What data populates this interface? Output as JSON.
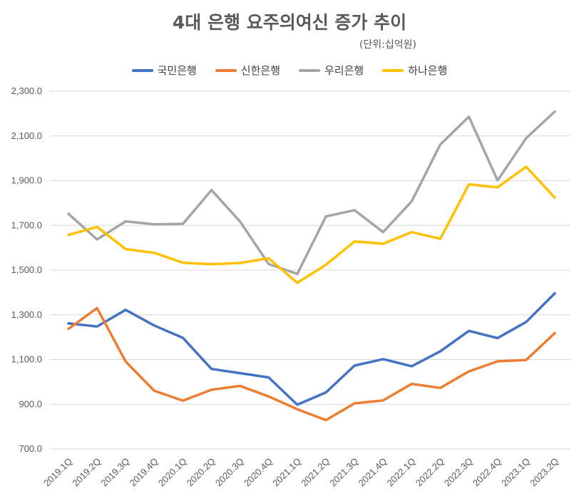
{
  "title": "4대 은행 요주의여신 증가 추이",
  "unit_note": "(단위:십억원)",
  "chart_data": {
    "type": "line",
    "title": "4대 은행 요주의여신 증가 추이",
    "unit": "(단위:십억원)",
    "categories": [
      "2019.1Q",
      "2019.2Q",
      "2019.3Q",
      "2019.4Q",
      "2020.1Q",
      "2020.2Q",
      "2020.3Q",
      "2020.4Q",
      "2021.1Q",
      "2021.2Q",
      "2021.3Q",
      "2021.4Q",
      "2022.1Q",
      "2022.2Q",
      "2022.3Q",
      "2022.4Q",
      "2023.1Q",
      "2023.2Q"
    ],
    "y_ticks": [
      "700.0",
      "900.0",
      "1,100.0",
      "1,300.0",
      "1,500.0",
      "1,700.0",
      "1,900.0",
      "2,100.0",
      "2,300.0"
    ],
    "ylim": [
      700,
      2300
    ],
    "grid": true,
    "legend_position": "top",
    "series": [
      {
        "name": "국민은행",
        "color": "#4472C4",
        "values": [
          1262,
          1248,
          1322,
          1252,
          1197,
          1058,
          1039,
          1020,
          898,
          953,
          1073,
          1102,
          1070,
          1137,
          1228,
          1196,
          1268,
          1396
        ]
      },
      {
        "name": "신한은행",
        "color": "#ED7D31",
        "values": [
          1237,
          1330,
          1091,
          960,
          916,
          965,
          982,
          935,
          878,
          829,
          904,
          917,
          991,
          973,
          1047,
          1092,
          1098,
          1218
        ]
      },
      {
        "name": "우리은행",
        "color": "#A5A5A5",
        "values": [
          1752,
          1637,
          1718,
          1705,
          1707,
          1858,
          1717,
          1527,
          1483,
          1740,
          1768,
          1670,
          1808,
          2062,
          2186,
          1901,
          2090,
          2209
        ]
      },
      {
        "name": "하나은행",
        "color": "#FFC000",
        "values": [
          1657,
          1693,
          1594,
          1577,
          1533,
          1526,
          1532,
          1553,
          1443,
          1524,
          1628,
          1618,
          1670,
          1640,
          1883,
          1870,
          1962,
          1824
        ]
      }
    ]
  }
}
